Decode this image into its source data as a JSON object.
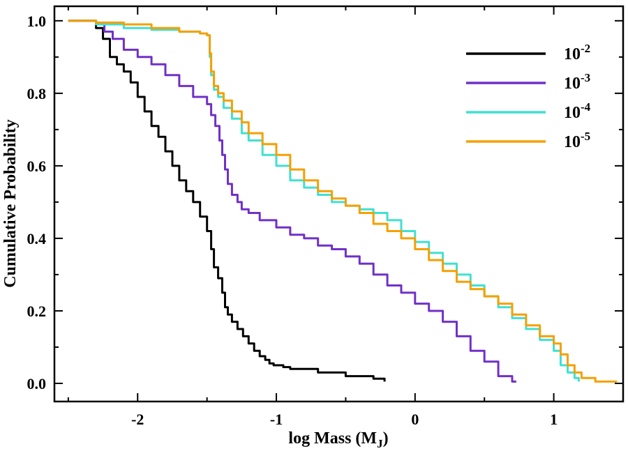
{
  "chart_data": {
    "type": "line",
    "xlabel": "log Mass (M",
    "xlabel_sub": "J",
    "xlabel_close": ")",
    "ylabel": "Cumulative Probability",
    "xlim": [
      -2.6,
      1.5
    ],
    "ylim": [
      -0.05,
      1.04
    ],
    "xticks": [
      -2,
      -1,
      0,
      1
    ],
    "xtick_labels": [
      "-2",
      "-1",
      "0",
      "1"
    ],
    "yticks": [
      0.0,
      0.2,
      0.4,
      0.6,
      0.8,
      1.0
    ],
    "ytick_labels": [
      "0.0",
      "0.2",
      "0.4",
      "0.6",
      "0.8",
      "1.0"
    ],
    "legend_position": "top-right",
    "series": [
      {
        "base": "10",
        "exp": "-2",
        "color": "#000000",
        "points": [
          [
            -2.5,
            1.0
          ],
          [
            -2.37,
            1.0
          ],
          [
            -2.3,
            0.98
          ],
          [
            -2.25,
            0.95
          ],
          [
            -2.2,
            0.9
          ],
          [
            -2.15,
            0.88
          ],
          [
            -2.1,
            0.86
          ],
          [
            -2.05,
            0.83
          ],
          [
            -2.0,
            0.79
          ],
          [
            -1.95,
            0.75
          ],
          [
            -1.9,
            0.71
          ],
          [
            -1.85,
            0.68
          ],
          [
            -1.8,
            0.64
          ],
          [
            -1.75,
            0.6
          ],
          [
            -1.7,
            0.56
          ],
          [
            -1.65,
            0.53
          ],
          [
            -1.6,
            0.5
          ],
          [
            -1.55,
            0.46
          ],
          [
            -1.5,
            0.42
          ],
          [
            -1.47,
            0.37
          ],
          [
            -1.45,
            0.32
          ],
          [
            -1.42,
            0.29
          ],
          [
            -1.39,
            0.25
          ],
          [
            -1.37,
            0.21
          ],
          [
            -1.35,
            0.19
          ],
          [
            -1.32,
            0.17
          ],
          [
            -1.28,
            0.15
          ],
          [
            -1.24,
            0.13
          ],
          [
            -1.2,
            0.11
          ],
          [
            -1.16,
            0.09
          ],
          [
            -1.12,
            0.075
          ],
          [
            -1.08,
            0.065
          ],
          [
            -1.05,
            0.055
          ],
          [
            -1.02,
            0.05
          ],
          [
            -0.95,
            0.045
          ],
          [
            -0.9,
            0.04
          ],
          [
            -0.7,
            0.03
          ],
          [
            -0.5,
            0.02
          ],
          [
            -0.3,
            0.013
          ],
          [
            -0.22,
            0.005
          ]
        ]
      },
      {
        "base": "10",
        "exp": "-3",
        "color": "#7030c8",
        "points": [
          [
            -2.5,
            1.0
          ],
          [
            -2.3,
            0.99
          ],
          [
            -2.24,
            0.97
          ],
          [
            -2.18,
            0.95
          ],
          [
            -2.1,
            0.92
          ],
          [
            -2.0,
            0.9
          ],
          [
            -1.9,
            0.88
          ],
          [
            -1.8,
            0.85
          ],
          [
            -1.7,
            0.82
          ],
          [
            -1.6,
            0.79
          ],
          [
            -1.5,
            0.77
          ],
          [
            -1.47,
            0.74
          ],
          [
            -1.44,
            0.71
          ],
          [
            -1.41,
            0.67
          ],
          [
            -1.39,
            0.63
          ],
          [
            -1.37,
            0.59
          ],
          [
            -1.35,
            0.55
          ],
          [
            -1.32,
            0.52
          ],
          [
            -1.28,
            0.5
          ],
          [
            -1.25,
            0.48
          ],
          [
            -1.2,
            0.47
          ],
          [
            -1.12,
            0.45
          ],
          [
            -1.0,
            0.43
          ],
          [
            -0.9,
            0.41
          ],
          [
            -0.8,
            0.4
          ],
          [
            -0.7,
            0.38
          ],
          [
            -0.6,
            0.37
          ],
          [
            -0.5,
            0.35
          ],
          [
            -0.4,
            0.33
          ],
          [
            -0.3,
            0.3
          ],
          [
            -0.2,
            0.27
          ],
          [
            -0.1,
            0.25
          ],
          [
            0.0,
            0.22
          ],
          [
            0.1,
            0.2
          ],
          [
            0.2,
            0.17
          ],
          [
            0.3,
            0.13
          ],
          [
            0.4,
            0.09
          ],
          [
            0.5,
            0.06
          ],
          [
            0.6,
            0.02
          ],
          [
            0.7,
            0.005
          ],
          [
            0.73,
            0.005
          ]
        ]
      },
      {
        "base": "10",
        "exp": "-4",
        "color": "#40e0d0",
        "points": [
          [
            -2.5,
            1.0
          ],
          [
            -2.3,
            0.99
          ],
          [
            -2.1,
            0.98
          ],
          [
            -1.9,
            0.975
          ],
          [
            -1.7,
            0.97
          ],
          [
            -1.55,
            0.965
          ],
          [
            -1.5,
            0.96
          ],
          [
            -1.48,
            0.9
          ],
          [
            -1.47,
            0.85
          ],
          [
            -1.45,
            0.81
          ],
          [
            -1.42,
            0.79
          ],
          [
            -1.38,
            0.76
          ],
          [
            -1.32,
            0.73
          ],
          [
            -1.25,
            0.69
          ],
          [
            -1.2,
            0.67
          ],
          [
            -1.1,
            0.63
          ],
          [
            -1.0,
            0.6
          ],
          [
            -0.9,
            0.56
          ],
          [
            -0.8,
            0.54
          ],
          [
            -0.7,
            0.52
          ],
          [
            -0.6,
            0.5
          ],
          [
            -0.5,
            0.49
          ],
          [
            -0.4,
            0.48
          ],
          [
            -0.3,
            0.47
          ],
          [
            -0.2,
            0.45
          ],
          [
            -0.1,
            0.42
          ],
          [
            0.0,
            0.39
          ],
          [
            0.1,
            0.36
          ],
          [
            0.2,
            0.33
          ],
          [
            0.3,
            0.3
          ],
          [
            0.4,
            0.27
          ],
          [
            0.5,
            0.24
          ],
          [
            0.6,
            0.21
          ],
          [
            0.7,
            0.18
          ],
          [
            0.8,
            0.15
          ],
          [
            0.9,
            0.12
          ],
          [
            1.0,
            0.09
          ],
          [
            1.05,
            0.05
          ],
          [
            1.1,
            0.03
          ],
          [
            1.15,
            0.015
          ],
          [
            1.18,
            0.005
          ]
        ]
      },
      {
        "base": "10",
        "exp": "-5",
        "color": "#f5a000",
        "points": [
          [
            -2.5,
            1.0
          ],
          [
            -2.3,
            0.995
          ],
          [
            -2.1,
            0.99
          ],
          [
            -1.9,
            0.98
          ],
          [
            -1.7,
            0.97
          ],
          [
            -1.55,
            0.965
          ],
          [
            -1.5,
            0.96
          ],
          [
            -1.48,
            0.91
          ],
          [
            -1.47,
            0.86
          ],
          [
            -1.45,
            0.82
          ],
          [
            -1.42,
            0.8
          ],
          [
            -1.38,
            0.78
          ],
          [
            -1.32,
            0.75
          ],
          [
            -1.25,
            0.72
          ],
          [
            -1.2,
            0.69
          ],
          [
            -1.1,
            0.66
          ],
          [
            -1.0,
            0.63
          ],
          [
            -0.9,
            0.59
          ],
          [
            -0.8,
            0.56
          ],
          [
            -0.7,
            0.53
          ],
          [
            -0.6,
            0.51
          ],
          [
            -0.5,
            0.49
          ],
          [
            -0.4,
            0.47
          ],
          [
            -0.3,
            0.44
          ],
          [
            -0.2,
            0.42
          ],
          [
            -0.1,
            0.4
          ],
          [
            0.0,
            0.37
          ],
          [
            0.1,
            0.34
          ],
          [
            0.2,
            0.31
          ],
          [
            0.3,
            0.28
          ],
          [
            0.4,
            0.26
          ],
          [
            0.5,
            0.24
          ],
          [
            0.6,
            0.22
          ],
          [
            0.7,
            0.19
          ],
          [
            0.8,
            0.16
          ],
          [
            0.9,
            0.13
          ],
          [
            1.0,
            0.11
          ],
          [
            1.05,
            0.08
          ],
          [
            1.1,
            0.05
          ],
          [
            1.15,
            0.03
          ],
          [
            1.2,
            0.015
          ],
          [
            1.3,
            0.005
          ],
          [
            1.45,
            0.003
          ]
        ]
      }
    ]
  }
}
